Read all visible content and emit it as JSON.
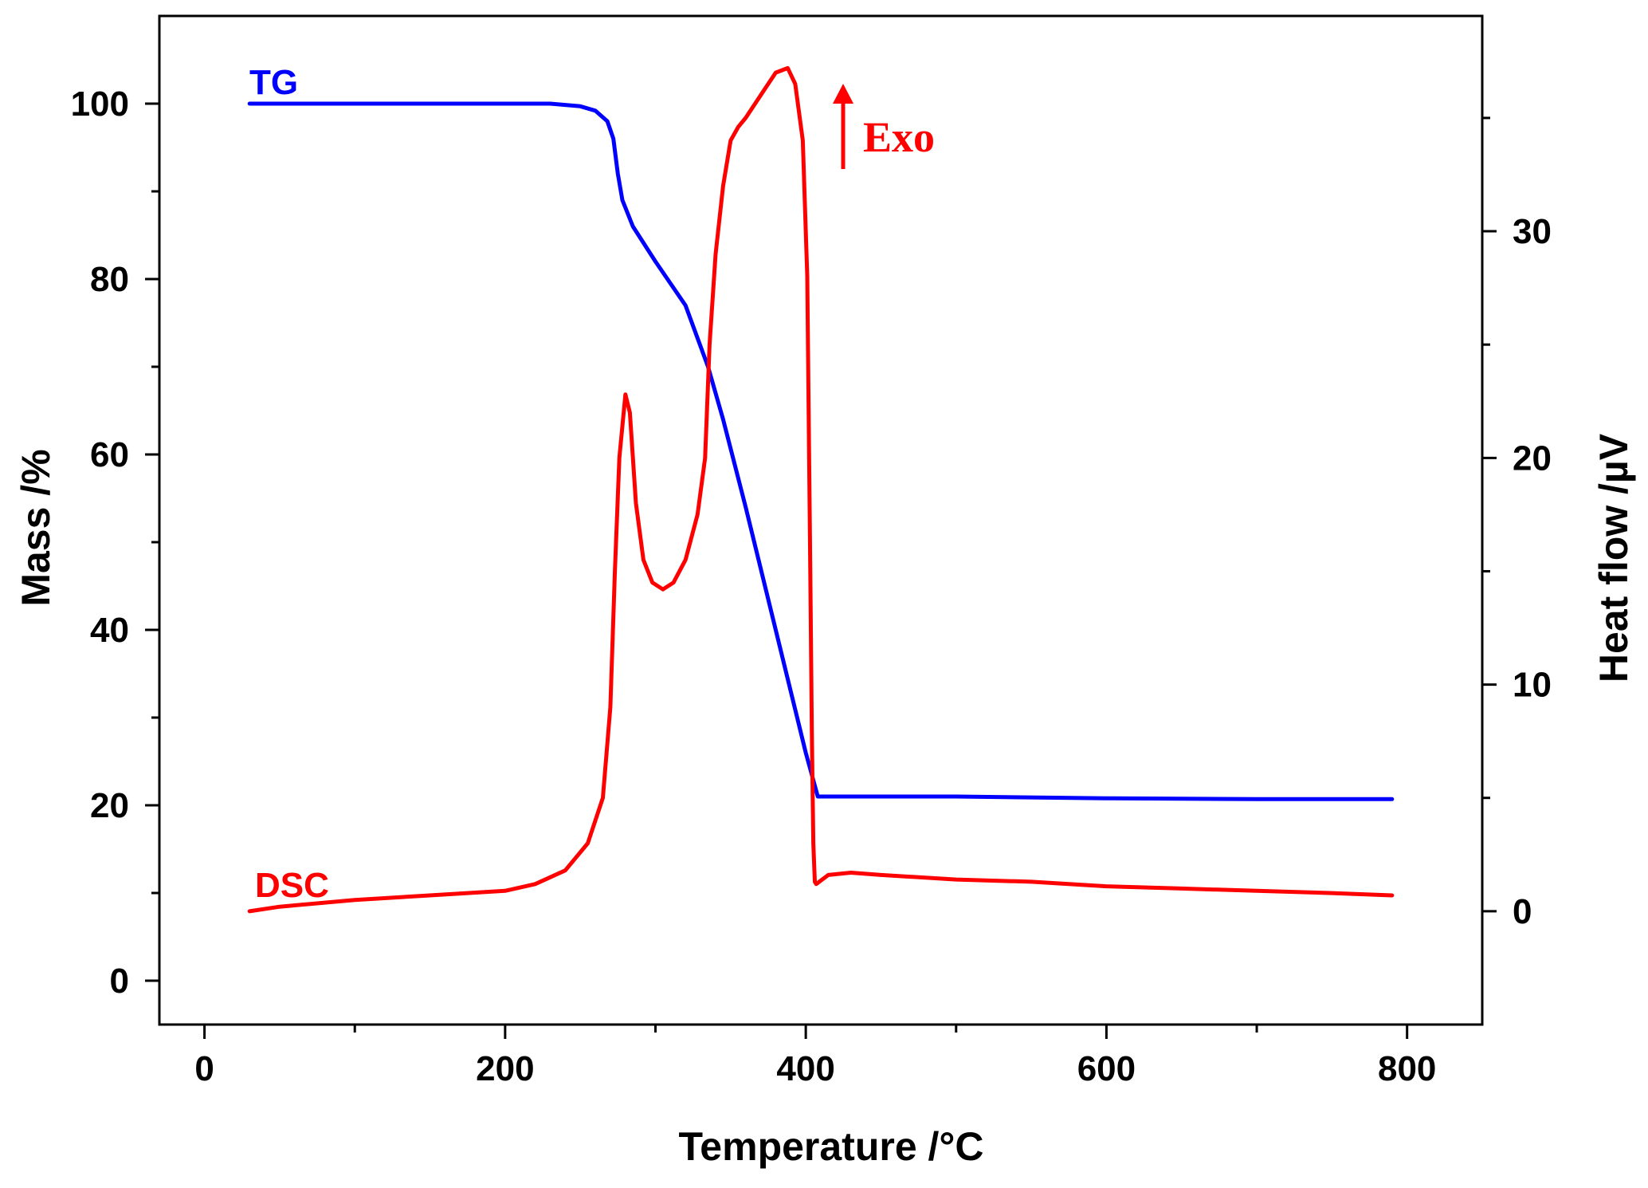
{
  "chart_data": {
    "type": "line",
    "title": "",
    "xlabel": "Temperature /°C",
    "ylabel_left": "Mass /%",
    "ylabel_right": "Heat flow /µV",
    "xlim": [
      -30,
      850
    ],
    "ylim_left": [
      -5,
      110
    ],
    "ylim_right": [
      -5,
      39.5
    ],
    "x_ticks": [
      0,
      200,
      400,
      600,
      800
    ],
    "x_minor_ticks": [
      100,
      300,
      500,
      700
    ],
    "y_left_ticks": [
      0,
      20,
      40,
      60,
      80,
      100
    ],
    "y_left_minor_ticks": [
      10,
      30,
      50,
      70,
      90
    ],
    "y_right_ticks": [
      0,
      10,
      20,
      30
    ],
    "y_right_minor_ticks": [
      5,
      15,
      25,
      35
    ],
    "series": [
      {
        "name": "TG",
        "axis": "left",
        "color": "#0000ff",
        "x": [
          30,
          100,
          200,
          230,
          250,
          260,
          268,
          272,
          275,
          278,
          285,
          300,
          320,
          335,
          345,
          360,
          380,
          400,
          408,
          450,
          500,
          600,
          700,
          790
        ],
        "y": [
          100,
          100,
          100,
          100,
          99.7,
          99.2,
          98,
          96,
          92,
          89,
          86,
          82,
          77,
          70,
          64,
          54,
          40,
          26,
          21,
          21,
          21,
          20.8,
          20.7,
          20.7
        ]
      },
      {
        "name": "DSC",
        "axis": "right",
        "color": "#ff0000",
        "x": [
          30,
          50,
          100,
          150,
          200,
          220,
          240,
          255,
          265,
          270,
          273,
          276,
          280,
          283,
          287,
          292,
          298,
          305,
          312,
          320,
          328,
          333,
          336,
          340,
          345,
          350,
          355,
          360,
          370,
          380,
          388,
          393,
          398,
          401,
          403,
          404,
          405,
          406,
          407,
          409,
          415,
          430,
          450,
          500,
          550,
          600,
          650,
          700,
          750,
          790
        ],
        "y": [
          0,
          0.2,
          0.5,
          0.7,
          0.9,
          1.2,
          1.8,
          3,
          5,
          9,
          15,
          20,
          22.8,
          22,
          18,
          15.5,
          14.5,
          14.2,
          14.5,
          15.5,
          17.5,
          20,
          25,
          29,
          32,
          34,
          34.6,
          35,
          36,
          37,
          37.2,
          36.5,
          34,
          28,
          15,
          8,
          3,
          1.3,
          1.2,
          1.3,
          1.6,
          1.7,
          1.6,
          1.4,
          1.3,
          1.1,
          1,
          0.9,
          0.8,
          0.7
        ]
      }
    ],
    "annotations": [
      {
        "text": "TG",
        "color": "#0000ff"
      },
      {
        "text": "DSC",
        "color": "#ff0000"
      },
      {
        "text": "Exo",
        "color": "#ff0000",
        "arrow": "up"
      }
    ]
  }
}
